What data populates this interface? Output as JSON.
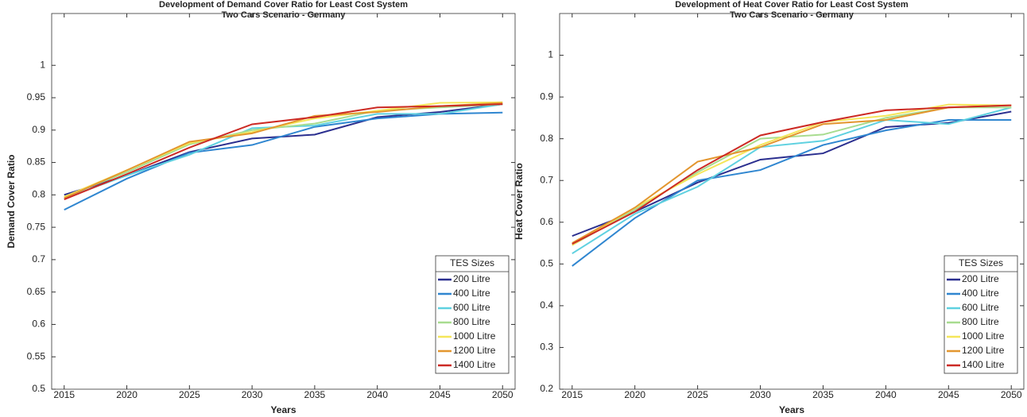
{
  "chart_data": [
    {
      "type": "line",
      "title": "Development of Demand Cover Ratio for Least Cost System",
      "subtitle": "Two Cars Scenario - Germany",
      "x_label": "Years",
      "y_label": "Demand Cover Ratio",
      "x": [
        2015,
        2020,
        2025,
        2030,
        2035,
        2040,
        2045,
        2050
      ],
      "xlim": [
        2014,
        2051
      ],
      "xticks": [
        2015,
        2020,
        2025,
        2030,
        2035,
        2040,
        2045,
        2050
      ],
      "ylim": [
        0.5,
        1.08
      ],
      "yticks": [
        0.5,
        0.55,
        0.6,
        0.65,
        0.7,
        0.75,
        0.8,
        0.85,
        0.9,
        0.95,
        1
      ],
      "legend_title": "TES Sizes",
      "legend_position": "lower right",
      "series": [
        {
          "name": "200 Litre",
          "color": "#2b2f8f",
          "values": [
            0.8,
            0.83,
            0.866,
            0.887,
            0.893,
            0.92,
            0.928,
            0.94
          ]
        },
        {
          "name": "400 Litre",
          "color": "#2f86d0",
          "values": [
            0.777,
            0.825,
            0.865,
            0.877,
            0.905,
            0.918,
            0.925,
            0.927
          ]
        },
        {
          "name": "600 Litre",
          "color": "#5fd1e0",
          "values": [
            0.795,
            0.83,
            0.862,
            0.903,
            0.907,
            0.925,
            0.925,
            0.94
          ]
        },
        {
          "name": "800 Litre",
          "color": "#a8dc8f",
          "values": [
            0.797,
            0.835,
            0.878,
            0.9,
            0.91,
            0.93,
            0.935,
            0.94
          ]
        },
        {
          "name": "1000 Litre",
          "color": "#f5e65a",
          "values": [
            0.797,
            0.838,
            0.88,
            0.897,
            0.918,
            0.93,
            0.942,
            0.943
          ]
        },
        {
          "name": "1200 Litre",
          "color": "#e3962f",
          "values": [
            0.795,
            0.838,
            0.882,
            0.895,
            0.922,
            0.928,
            0.937,
            0.942
          ]
        },
        {
          "name": "1400 Litre",
          "color": "#cc2a24",
          "values": [
            0.793,
            0.832,
            0.873,
            0.909,
            0.92,
            0.935,
            0.937,
            0.94
          ]
        }
      ]
    },
    {
      "type": "line",
      "title": "Development of Heat Cover Ratio for Least Cost System",
      "subtitle": "Two Cars Scenario - Germany",
      "x_label": "Years",
      "y_label": "Heat Cover Ratio",
      "x": [
        2015,
        2020,
        2025,
        2030,
        2035,
        2040,
        2045,
        2050
      ],
      "xlim": [
        2014,
        2051
      ],
      "xticks": [
        2015,
        2020,
        2025,
        2030,
        2035,
        2040,
        2045,
        2050
      ],
      "ylim": [
        0.2,
        1.1
      ],
      "yticks": [
        0.2,
        0.3,
        0.4,
        0.5,
        0.6,
        0.7,
        0.8,
        0.9,
        1
      ],
      "legend_title": "TES Sizes",
      "legend_position": "lower right",
      "series": [
        {
          "name": "200 Litre",
          "color": "#2b2f8f",
          "values": [
            0.567,
            0.625,
            0.695,
            0.75,
            0.765,
            0.828,
            0.838,
            0.865
          ]
        },
        {
          "name": "400 Litre",
          "color": "#2f86d0",
          "values": [
            0.495,
            0.61,
            0.7,
            0.725,
            0.785,
            0.82,
            0.845,
            0.845
          ]
        },
        {
          "name": "600 Litre",
          "color": "#5fd1e0",
          "values": [
            0.525,
            0.62,
            0.685,
            0.78,
            0.795,
            0.845,
            0.835,
            0.875
          ]
        },
        {
          "name": "800 Litre",
          "color": "#a8dc8f",
          "values": [
            0.545,
            0.63,
            0.72,
            0.8,
            0.81,
            0.85,
            0.875,
            0.875
          ]
        },
        {
          "name": "1000 Litre",
          "color": "#f5e65a",
          "values": [
            0.545,
            0.635,
            0.715,
            0.785,
            0.84,
            0.855,
            0.882,
            0.88
          ]
        },
        {
          "name": "1200 Litre",
          "color": "#e3962f",
          "values": [
            0.55,
            0.635,
            0.745,
            0.78,
            0.835,
            0.845,
            0.875,
            0.88
          ]
        },
        {
          "name": "1400 Litre",
          "color": "#cc2a24",
          "values": [
            0.548,
            0.625,
            0.725,
            0.808,
            0.84,
            0.868,
            0.875,
            0.88
          ]
        }
      ]
    }
  ]
}
